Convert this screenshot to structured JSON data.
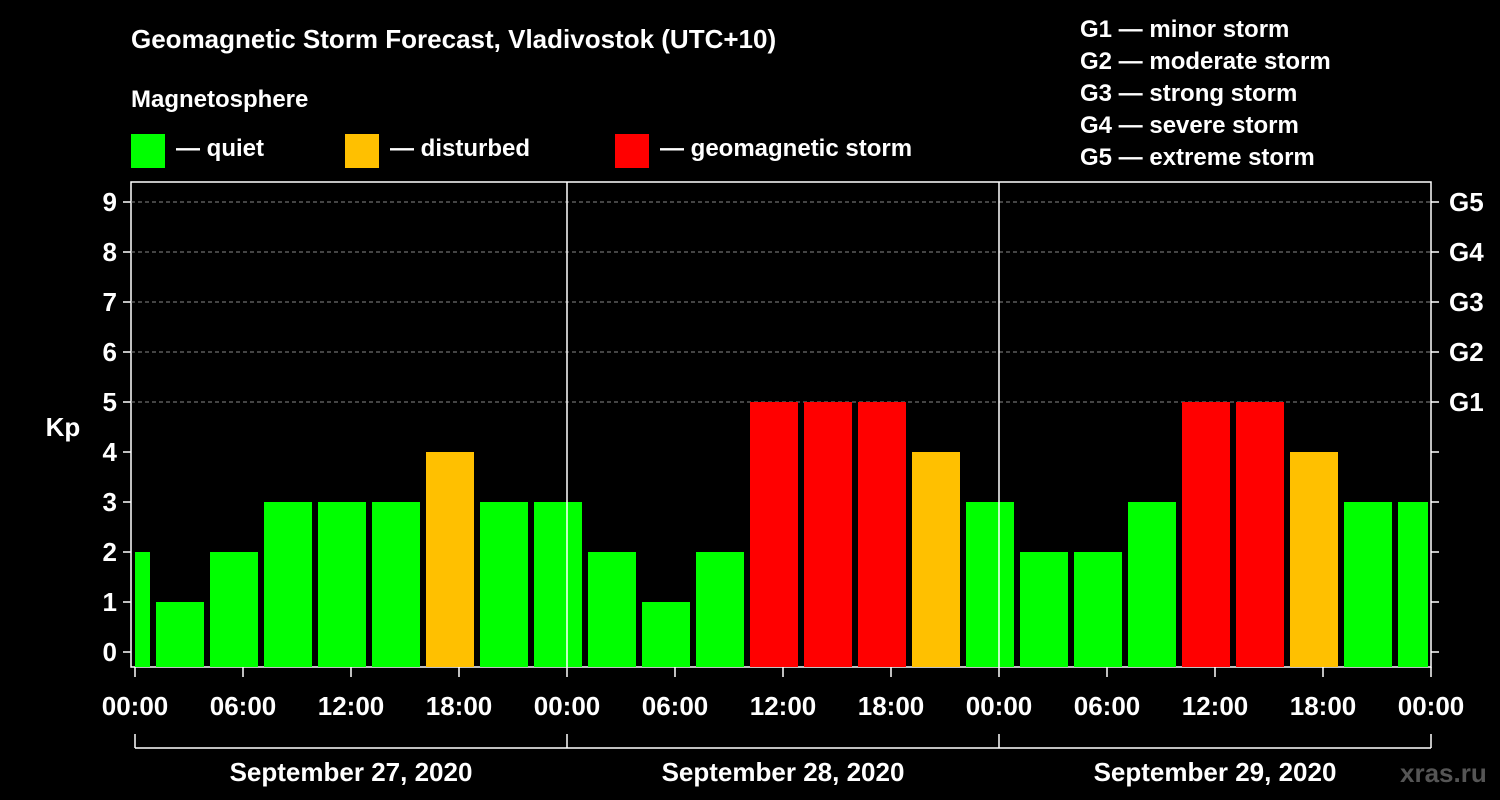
{
  "chart_data": {
    "type": "bar",
    "title": "Geomagnetic Storm Forecast, Vladivostok (UTC+10)",
    "subtitle": "Magnetosphere",
    "ylabel": "Kp",
    "ylim": [
      0,
      9
    ],
    "yticks": [
      "0",
      "1",
      "2",
      "3",
      "4",
      "5",
      "6",
      "7",
      "8",
      "9"
    ],
    "right_axis": [
      {
        "kp": 5,
        "label": "G1"
      },
      {
        "kp": 6,
        "label": "G2"
      },
      {
        "kp": 7,
        "label": "G3"
      },
      {
        "kp": 8,
        "label": "G4"
      },
      {
        "kp": 9,
        "label": "G5"
      }
    ],
    "x_ticks": [
      "00:00",
      "06:00",
      "12:00",
      "18:00",
      "00:00",
      "06:00",
      "12:00",
      "18:00",
      "00:00",
      "06:00",
      "12:00",
      "18:00",
      "00:00"
    ],
    "days": [
      "September 27, 2020",
      "September 28, 2020",
      "September 29, 2020"
    ],
    "interval_hours": 3,
    "values": [
      2,
      1,
      2,
      3,
      3,
      3,
      4,
      3,
      3,
      2,
      1,
      2,
      5,
      5,
      5,
      4,
      3,
      2,
      2,
      3,
      5,
      5,
      4,
      3,
      3
    ],
    "categories": [
      "quiet",
      "quiet",
      "quiet",
      "quiet",
      "quiet",
      "quiet",
      "disturbed",
      "quiet",
      "quiet",
      "quiet",
      "quiet",
      "quiet",
      "storm",
      "storm",
      "storm",
      "disturbed",
      "quiet",
      "quiet",
      "quiet",
      "quiet",
      "storm",
      "storm",
      "disturbed",
      "quiet",
      "quiet"
    ],
    "legend": [
      {
        "key": "quiet",
        "label": "— quiet",
        "color": "#00ff00"
      },
      {
        "key": "disturbed",
        "label": "— disturbed",
        "color": "#ffc000"
      },
      {
        "key": "storm",
        "label": "— geomagnetic storm",
        "color": "#ff0000"
      }
    ],
    "storm_levels": [
      "G1 — minor storm",
      "G2 — moderate storm",
      "G3 — strong storm",
      "G4 — severe storm",
      "G5 — extreme storm"
    ],
    "watermark": "xras.ru"
  }
}
